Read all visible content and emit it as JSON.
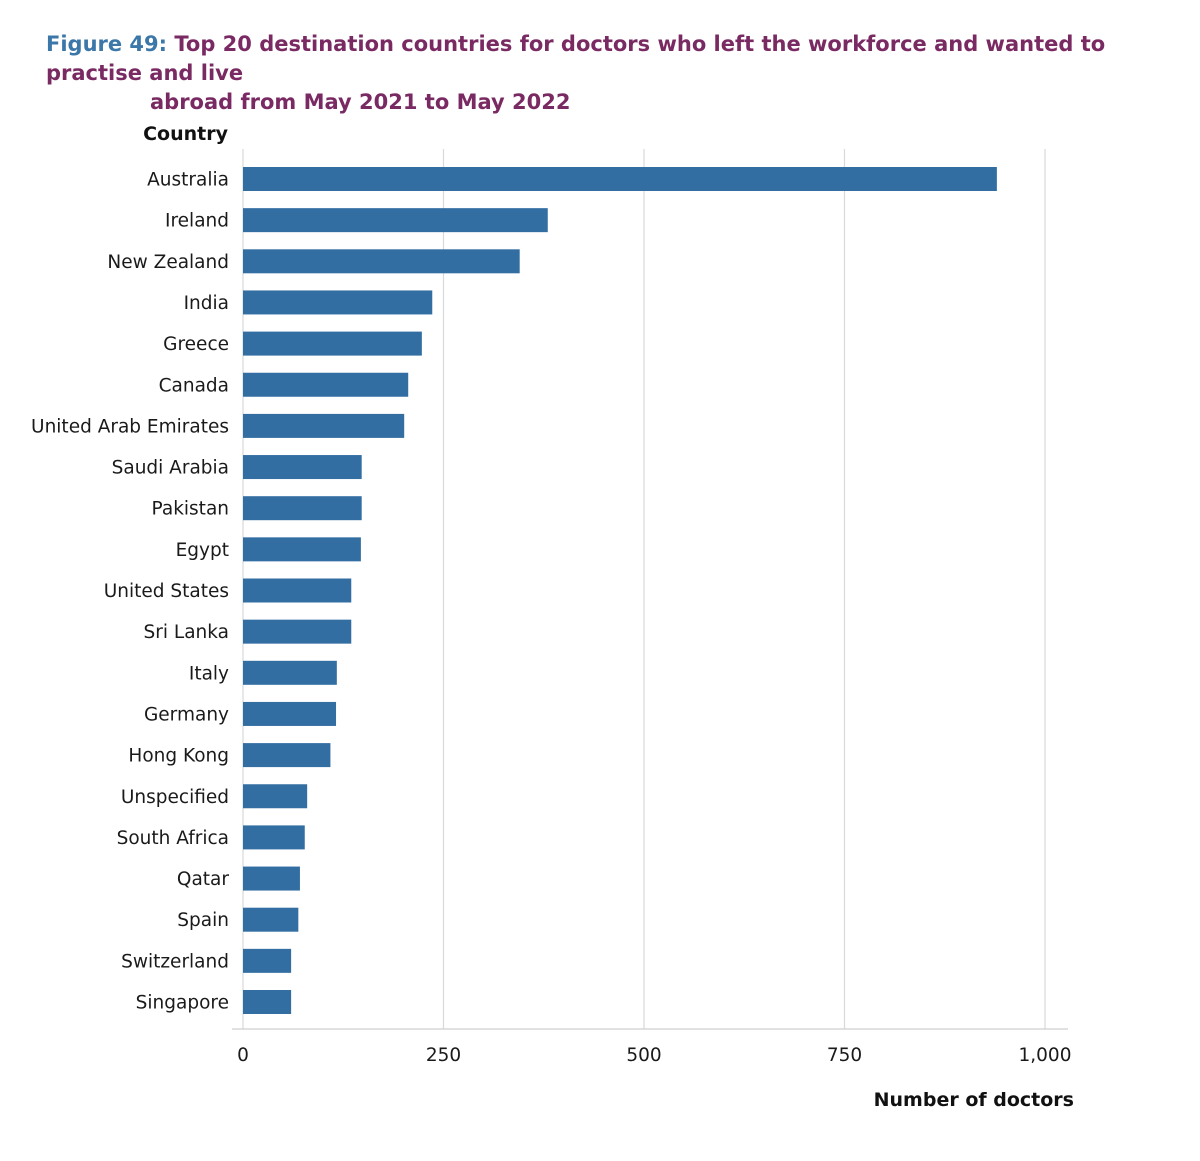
{
  "figure": {
    "label": "Figure 49:",
    "title_line1": "Top 20 destination countries for doctors who left the workforce and wanted to practise and live",
    "title_line2": "abroad from May 2021 to May 2022"
  },
  "chart_data": {
    "type": "bar",
    "orientation": "horizontal",
    "title": "Top 20 destination countries for doctors who left the workforce and wanted to practise and live abroad from May 2021 to May 2022",
    "ylabel": "Country",
    "xlabel": "Number of doctors",
    "xlim": [
      0,
      1000
    ],
    "xticks": [
      0,
      250,
      500,
      750,
      1000
    ],
    "xtick_labels": [
      "0",
      "250",
      "500",
      "750",
      "1,000"
    ],
    "grid": "vertical",
    "bar_color": "#336ea3",
    "categories": [
      "Australia",
      "Ireland",
      "New Zealand",
      "India",
      "Greece",
      "Canada",
      "United Arab Emirates",
      "Saudi Arabia",
      "Pakistan",
      "Egypt",
      "United States",
      "Sri Lanka",
      "Italy",
      "Germany",
      "Hong Kong",
      "Unspecified",
      "South Africa",
      "Qatar",
      "Spain",
      "Switzerland",
      "Singapore"
    ],
    "values": [
      940,
      380,
      345,
      236,
      223,
      206,
      201,
      148,
      148,
      147,
      135,
      135,
      117,
      116,
      109,
      80,
      77,
      71,
      69,
      60,
      60
    ]
  }
}
